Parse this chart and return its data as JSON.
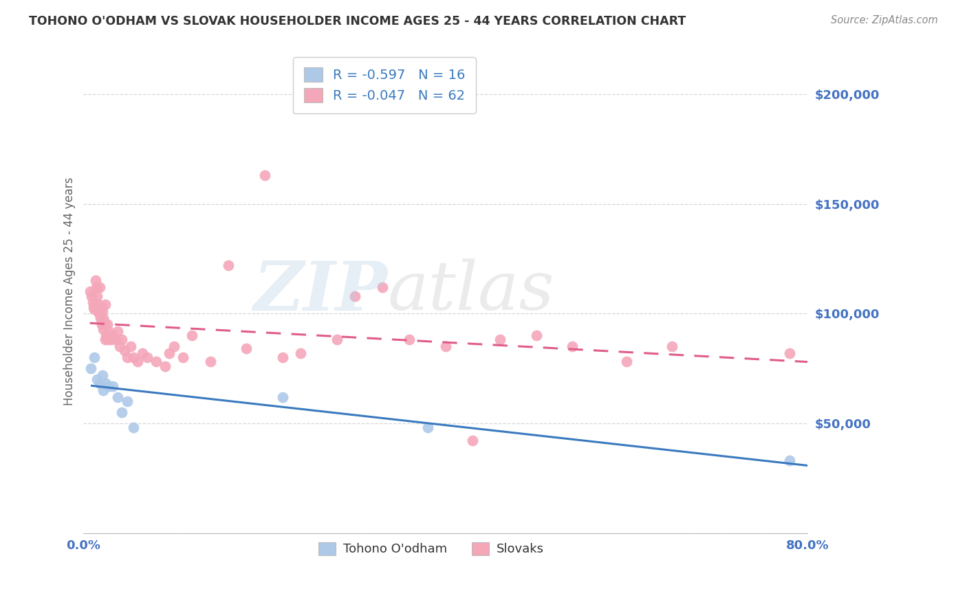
{
  "title": "TOHONO O'ODHAM VS SLOVAK HOUSEHOLDER INCOME AGES 25 - 44 YEARS CORRELATION CHART",
  "source": "Source: ZipAtlas.com",
  "ylabel": "Householder Income Ages 25 - 44 years",
  "ylim": [
    0,
    220000
  ],
  "xlim": [
    0.0,
    0.8
  ],
  "yticks": [
    0,
    50000,
    100000,
    150000,
    200000
  ],
  "ytick_labels": [
    "",
    "$50,000",
    "$100,000",
    "$150,000",
    "$200,000"
  ],
  "xticks": [
    0.0,
    0.1,
    0.2,
    0.3,
    0.4,
    0.5,
    0.6,
    0.7,
    0.8
  ],
  "xtick_labels": [
    "0.0%",
    "",
    "",
    "",
    "",
    "",
    "",
    "",
    "80.0%"
  ],
  "blue_color": "#aec9e8",
  "pink_color": "#f4a7b9",
  "blue_line_color": "#3a7abf",
  "pink_line_color": "#e05c8a",
  "r_blue": -0.597,
  "n_blue": 16,
  "r_pink": -0.047,
  "n_pink": 62,
  "tohono_x": [
    0.008,
    0.012,
    0.015,
    0.018,
    0.021,
    0.022,
    0.025,
    0.028,
    0.032,
    0.038,
    0.042,
    0.048,
    0.055,
    0.22,
    0.38,
    0.78
  ],
  "tohono_y": [
    75000,
    80000,
    70000,
    68000,
    72000,
    65000,
    68000,
    67000,
    67000,
    62000,
    55000,
    60000,
    48000,
    62000,
    48000,
    33000
  ],
  "slovak_x": [
    0.007,
    0.009,
    0.01,
    0.011,
    0.012,
    0.013,
    0.014,
    0.015,
    0.016,
    0.017,
    0.018,
    0.018,
    0.019,
    0.02,
    0.02,
    0.021,
    0.022,
    0.022,
    0.023,
    0.024,
    0.024,
    0.025,
    0.026,
    0.027,
    0.028,
    0.03,
    0.032,
    0.035,
    0.038,
    0.04,
    0.042,
    0.045,
    0.048,
    0.052,
    0.055,
    0.06,
    0.065,
    0.07,
    0.08,
    0.09,
    0.095,
    0.1,
    0.11,
    0.12,
    0.14,
    0.16,
    0.18,
    0.2,
    0.22,
    0.24,
    0.28,
    0.3,
    0.33,
    0.36,
    0.4,
    0.43,
    0.46,
    0.5,
    0.54,
    0.6,
    0.65,
    0.78
  ],
  "slovak_y": [
    110000,
    108000,
    105000,
    103000,
    102000,
    115000,
    112000,
    108000,
    104000,
    100000,
    112000,
    100000,
    98000,
    103000,
    95000,
    101000,
    98000,
    93000,
    96000,
    104000,
    88000,
    90000,
    95000,
    88000,
    92000,
    88000,
    90000,
    88000,
    92000,
    85000,
    88000,
    83000,
    80000,
    85000,
    80000,
    78000,
    82000,
    80000,
    78000,
    76000,
    82000,
    85000,
    80000,
    90000,
    78000,
    122000,
    84000,
    163000,
    80000,
    82000,
    88000,
    108000,
    112000,
    88000,
    85000,
    42000,
    88000,
    90000,
    85000,
    78000,
    85000,
    82000
  ],
  "watermark_zip": "ZIP",
  "watermark_atlas": "atlas",
  "background_color": "#ffffff",
  "grid_color": "#cccccc",
  "title_color": "#333333",
  "axis_label_color": "#4472c4",
  "ylabel_color": "#666666",
  "legend_label_blue": "Tohono O'odham",
  "legend_label_pink": "Slovaks",
  "legend_text_color": "#333333",
  "legend_value_color": "#3a7abf"
}
